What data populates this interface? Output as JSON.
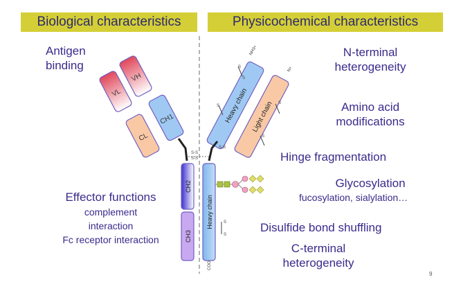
{
  "header": {
    "left": "Biological characteristics",
    "right": "Physicochemical characteristics"
  },
  "left_labels": {
    "antigen_binding": [
      "Antigen",
      "binding"
    ],
    "effector_title": "Effector functions",
    "effector_items": [
      "complement",
      "interaction",
      "Fc receptor interaction"
    ]
  },
  "right_labels": {
    "n_terminal": [
      "N-terminal",
      "heterogeneity"
    ],
    "amino_acid": [
      "Amino acid",
      "modifications"
    ],
    "hinge": "Hinge fragmentation",
    "glyco_title": "Glycosylation",
    "glyco_sub": "fucosylation, sialylation…",
    "disulfide": "Disulfide bond shuffling",
    "c_terminal": [
      "C-terminal",
      "heterogeneity"
    ]
  },
  "domains": {
    "vl": "VL",
    "vh": "VH",
    "cl": "CL",
    "ch1": "CH1",
    "ch2": "CH2",
    "ch3": "CH3",
    "heavy_chain": "Heavy chain",
    "light_chain": "Light chain"
  },
  "marks": {
    "ss": "S-S",
    "s": "S",
    "nh3": "NH3+",
    "nplus": "N+",
    "coo": "COO"
  },
  "page_number": "9",
  "colors": {
    "header_bg": "#d4cf36",
    "text": "#3b2a8c",
    "heavy_blue": "#9fc9f3",
    "light_orange": "#f9c9a6",
    "variable_red": "#e0475a",
    "ch2_purple": "#5e4fd6",
    "domain_border": "#7060c0",
    "glycan_green": "#a9c23f",
    "glycan_pink": "#f1a2c0",
    "glycan_yellow": "#dede6a"
  }
}
